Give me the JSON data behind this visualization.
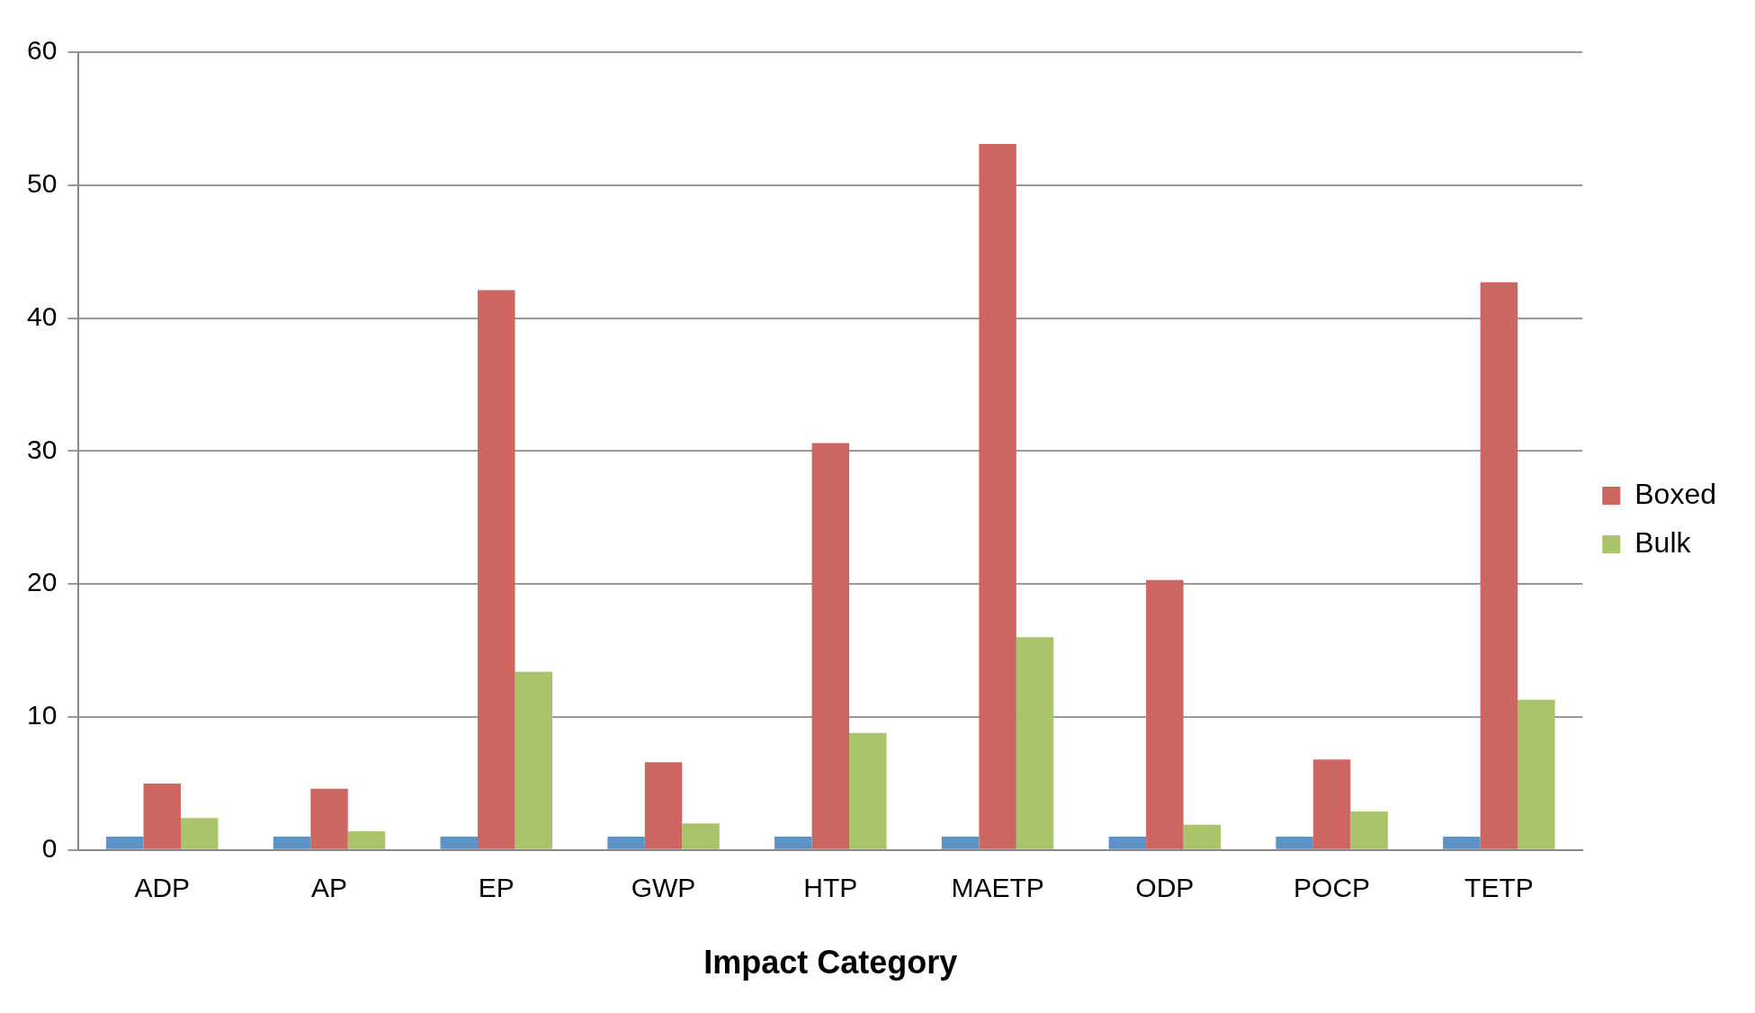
{
  "chart_data": {
    "type": "bar",
    "xlabel": "Impact Category",
    "categories": [
      "ADP",
      "AP",
      "EP",
      "GWP",
      "HTP",
      "MAETP",
      "ODP",
      "POCP",
      "TETP"
    ],
    "series": [
      {
        "color": "#5b93c9",
        "values": [
          1,
          1,
          1,
          1,
          1,
          1,
          1,
          1,
          1
        ]
      },
      {
        "name": "Boxed",
        "color": "#cd6660",
        "values": [
          5.0,
          4.6,
          42.1,
          6.6,
          30.6,
          53.1,
          20.3,
          6.8,
          42.7
        ]
      },
      {
        "name": "Bulk",
        "color": "#a9c46a",
        "values": [
          2.4,
          1.4,
          13.4,
          2.0,
          8.8,
          16.0,
          1.9,
          2.9,
          11.3
        ]
      }
    ],
    "ylim": [
      0,
      60
    ],
    "yticks": [
      0,
      10,
      20,
      30,
      40,
      50,
      60
    ],
    "grid": "y",
    "legend": "right"
  }
}
